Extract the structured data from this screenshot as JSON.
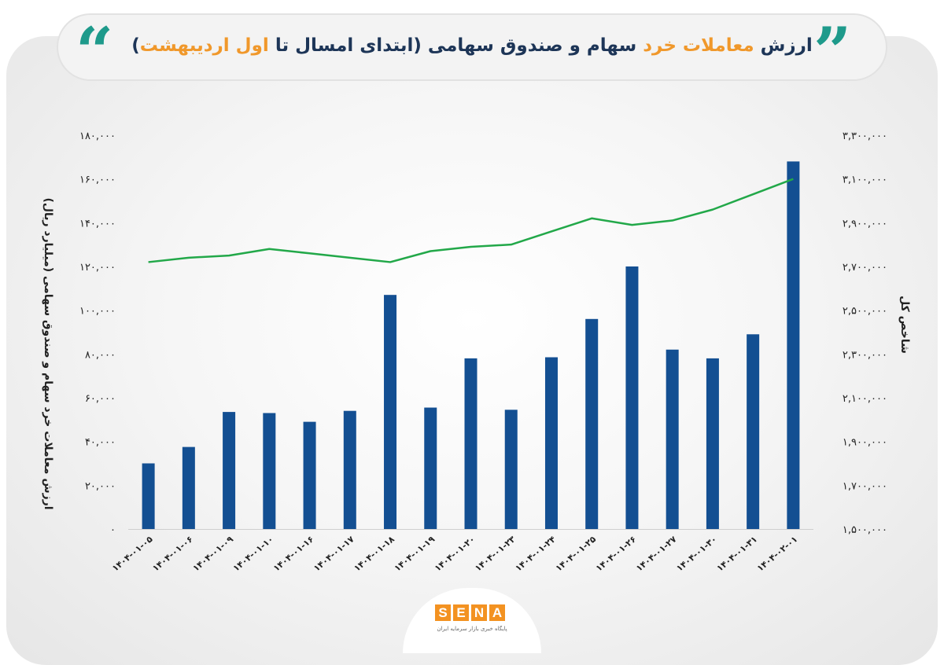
{
  "title": {
    "part1": "ارزش ",
    "part2": "معاملات خرد",
    "part3": " سهام و صندوق سهامی (ابتدای امسال تا ",
    "part4": "اول اردیبهشت",
    "part5": ")"
  },
  "logo": {
    "letters": [
      "S",
      "E",
      "N",
      "A"
    ],
    "tagline": "پایگاه خبری بازار سرمایه ایران"
  },
  "colors": {
    "bar": "#134f92",
    "line": "#22a849",
    "quote": "#1e9a8b",
    "highlight": "#f0982b",
    "title": "#1d3557"
  },
  "chart_data": {
    "type": "bar",
    "categories": [
      "۱۴۰۴-۰۱-۰۵",
      "۱۴۰۴-۰۱-۰۶",
      "۱۴۰۴-۰۱-۰۹",
      "۱۴۰۴-۰۱-۱۰",
      "۱۴۰۴-۰۱-۱۶",
      "۱۴۰۴-۰۱-۱۷",
      "۱۴۰۴-۰۱-۱۸",
      "۱۴۰۴-۰۱-۱۹",
      "۱۴۰۴-۰۱-۲۰",
      "۱۴۰۴-۰۱-۲۳",
      "۱۴۰۴-۰۱-۲۴",
      "۱۴۰۴-۰۱-۲۵",
      "۱۴۰۴-۰۱-۲۶",
      "۱۴۰۴-۰۱-۲۷",
      "۱۴۰۴-۰۱-۳۰",
      "۱۴۰۴-۰۱-۳۱",
      "۱۴۰۴-۰۲-۰۱"
    ],
    "series": [
      {
        "type": "bar",
        "axis": "left",
        "values": [
          30000,
          37500,
          53500,
          53000,
          49000,
          54000,
          107000,
          55500,
          78000,
          54500,
          78500,
          96000,
          120000,
          82000,
          78000,
          89000,
          168000
        ]
      },
      {
        "type": "line",
        "axis": "right",
        "values": [
          2720000,
          2740000,
          2750000,
          2780000,
          2760000,
          2740000,
          2720000,
          2770000,
          2790000,
          2800000,
          2860000,
          2920000,
          2890000,
          2910000,
          2960000,
          3030000,
          3100000
        ]
      }
    ],
    "y_left": {
      "label": "ارزش معاملات خرد سهام و صندوق سهامی (میلیارد ریال)",
      "range": [
        0,
        180000
      ],
      "ticks": [
        "۰",
        "۲۰,۰۰۰",
        "۴۰,۰۰۰",
        "۶۰,۰۰۰",
        "۸۰,۰۰۰",
        "۱۰۰,۰۰۰",
        "۱۲۰,۰۰۰",
        "۱۴۰,۰۰۰",
        "۱۶۰,۰۰۰",
        "۱۸۰,۰۰۰"
      ]
    },
    "y_right": {
      "label": "شاخص کل",
      "range": [
        1500000,
        3300000
      ],
      "ticks": [
        "۱,۵۰۰,۰۰۰",
        "۱,۷۰۰,۰۰۰",
        "۱,۹۰۰,۰۰۰",
        "۲,۱۰۰,۰۰۰",
        "۲,۳۰۰,۰۰۰",
        "۲,۵۰۰,۰۰۰",
        "۲,۷۰۰,۰۰۰",
        "۲,۹۰۰,۰۰۰",
        "۳,۱۰۰,۰۰۰",
        "۳,۳۰۰,۰۰۰"
      ]
    },
    "grid": false,
    "legend": "none"
  }
}
